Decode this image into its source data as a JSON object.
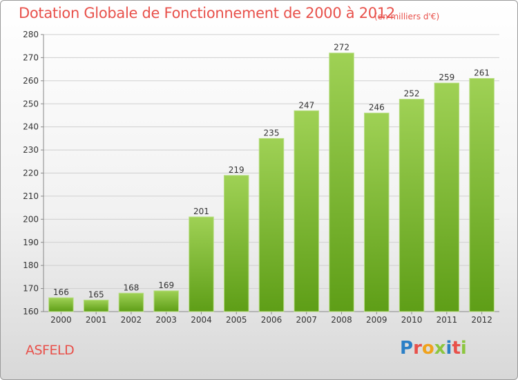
{
  "chart_data": {
    "type": "bar",
    "title": "Dotation Globale de Fonctionnement de 2000 à 2012",
    "unit_note": "(en milliers d'€)",
    "categories": [
      "2000",
      "2001",
      "2002",
      "2003",
      "2004",
      "2005",
      "2006",
      "2007",
      "2008",
      "2009",
      "2010",
      "2011",
      "2012"
    ],
    "values": [
      166,
      165,
      168,
      169,
      201,
      219,
      235,
      247,
      272,
      246,
      252,
      259,
      261
    ],
    "ylim": [
      160,
      280
    ],
    "yticks": [
      160,
      170,
      180,
      190,
      200,
      210,
      220,
      230,
      240,
      250,
      260,
      270,
      280
    ],
    "grid": true,
    "bar_color_top": "#9fd155",
    "bar_color_bottom": "#5e9e17"
  },
  "footer": {
    "commune": "ASFELD",
    "logo_text": "Proxiti"
  },
  "colors": {
    "title": "#e8504a",
    "logo_letters": [
      "#2a7fc6",
      "#e8504a",
      "#f0a21c",
      "#8cc63f",
      "#2a7fc6",
      "#e8504a",
      "#8cc63f"
    ]
  }
}
